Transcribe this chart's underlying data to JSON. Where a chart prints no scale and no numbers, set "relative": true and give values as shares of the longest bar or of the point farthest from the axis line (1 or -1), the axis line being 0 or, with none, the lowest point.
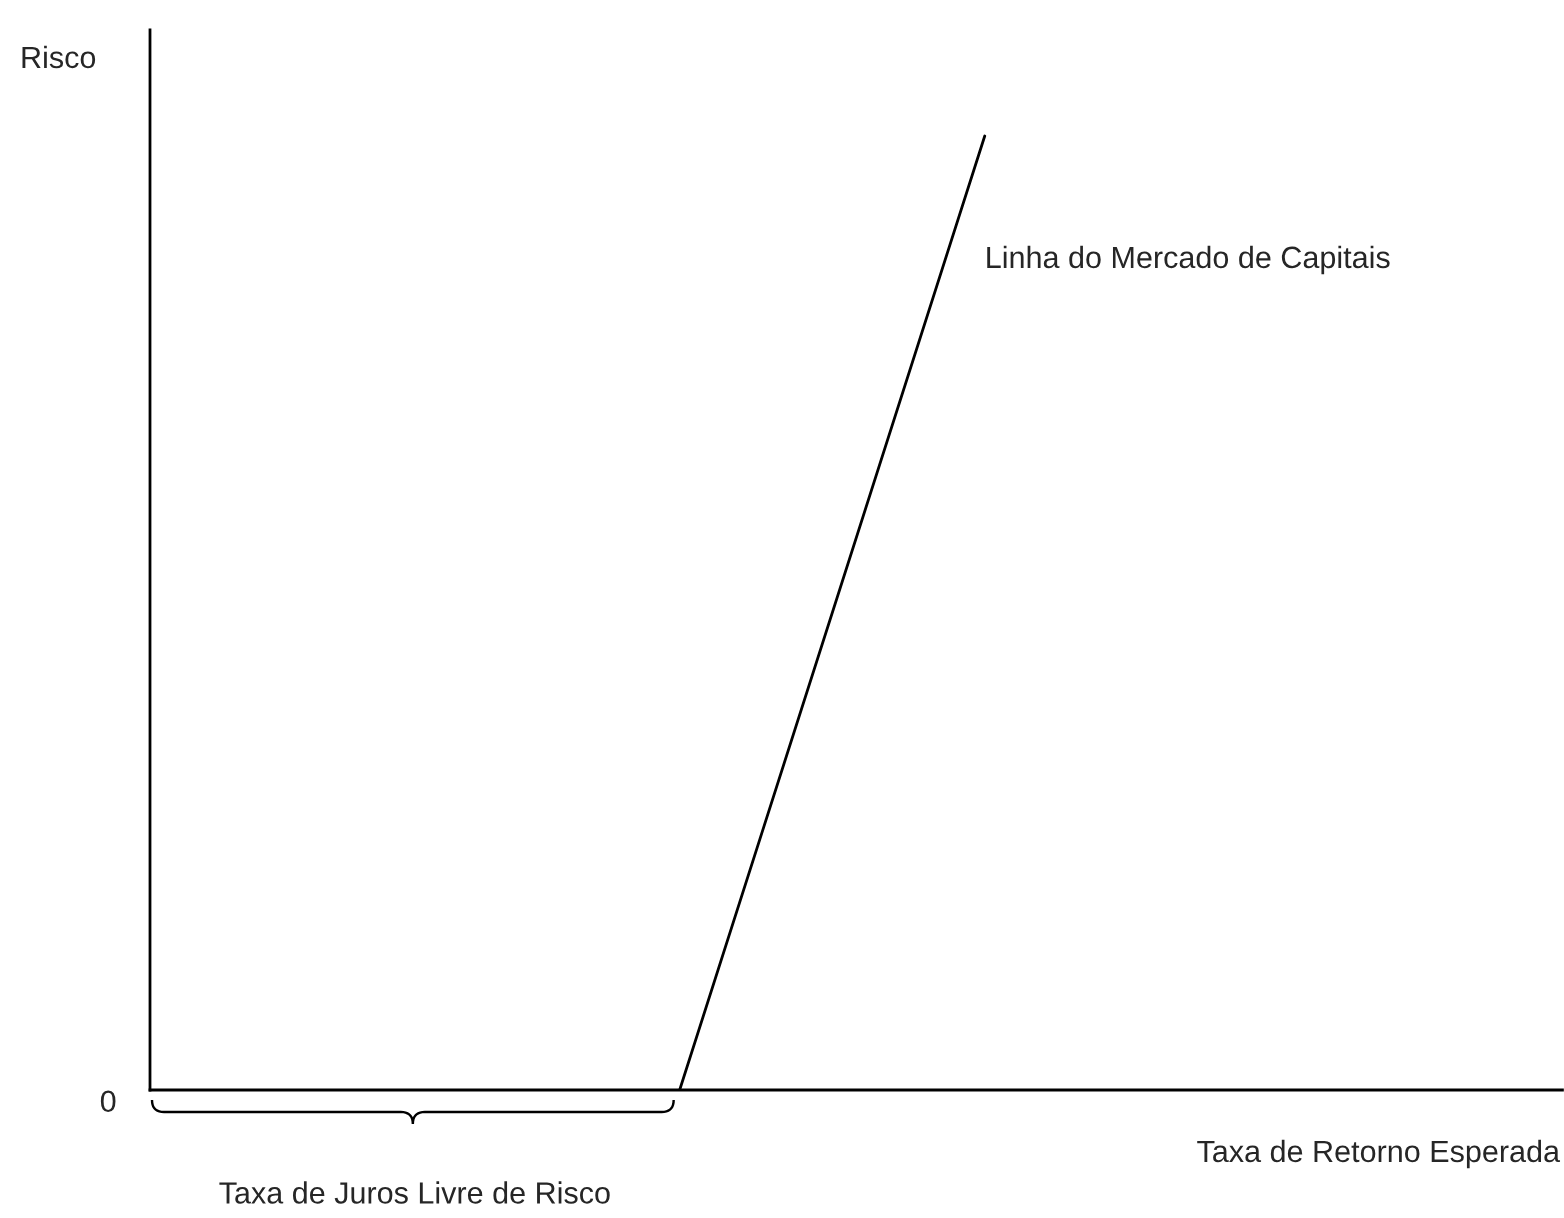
{
  "chart_data": {
    "type": "line",
    "xlabel": "Taxa de Retorno Esperada",
    "relative": true,
    "marker": "none",
    "line_style": "solid",
    "categories": [
      null,
      null
    ],
    "series": [
      {
        "name": "Linha do Mercado de Capitais",
        "color": "#000000",
        "values": [
          0,
          1
        ]
      }
    ],
    "annotations": [
      "0",
      "Taxa de Juros Livre de Risco",
      "Risco"
    ]
  }
}
